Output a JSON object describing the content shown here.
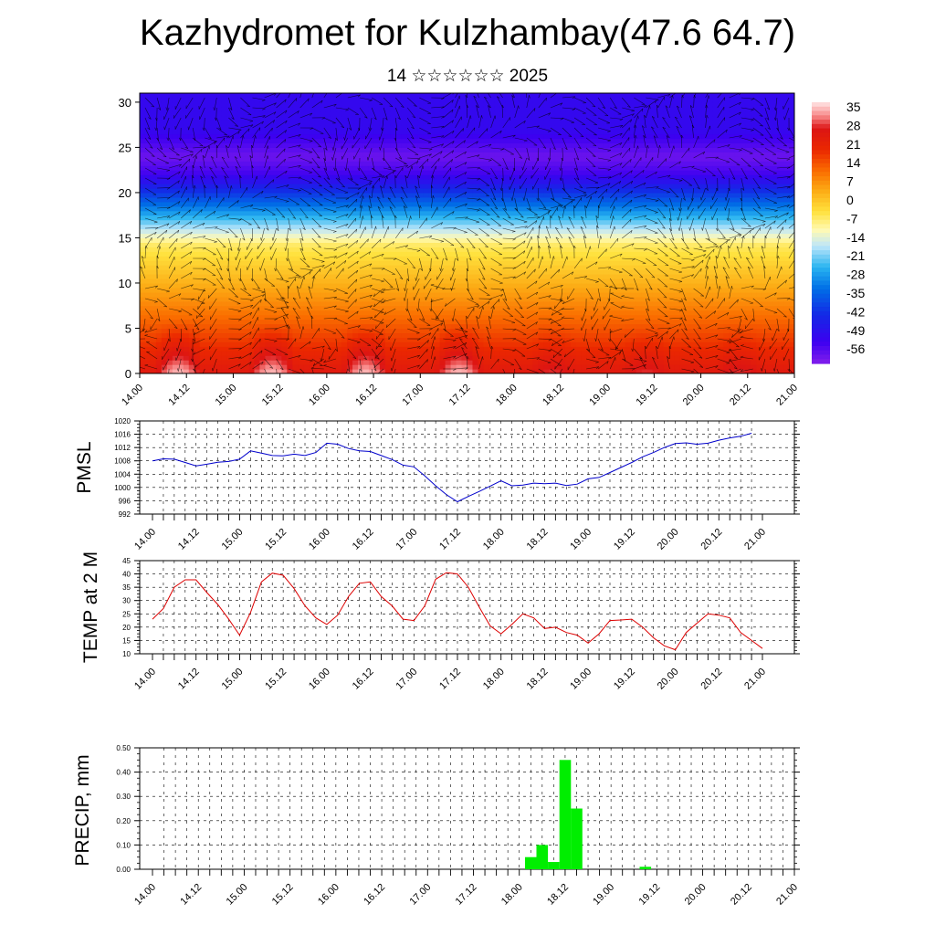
{
  "header": {
    "title": "Kazhydromet for Kulzhambay(47.6 64.7)",
    "subtitle": "14 ☆☆☆☆☆☆ 2025"
  },
  "chart_data": [
    {
      "type": "heatmap",
      "title": "",
      "y_range": [
        0,
        30
      ],
      "y_ticks": [
        0,
        5,
        10,
        15,
        20,
        25,
        30
      ],
      "x_ticks": [
        "14.00",
        "14.12",
        "15.00",
        "15.12",
        "16.00",
        "16.12",
        "17.00",
        "17.12",
        "18.00",
        "18.12",
        "19.00",
        "19.12",
        "20.00",
        "20.12",
        "21.00"
      ],
      "colorbar_labels": [
        "35",
        "28",
        "21",
        "14",
        "7",
        "0",
        "-7",
        "-14",
        "-21",
        "-28",
        "-35",
        "-42",
        "-49",
        "-56"
      ],
      "overlay": "wind vectors"
    },
    {
      "type": "line",
      "ylabel": "PMSL",
      "ylim": [
        992,
        1020
      ],
      "y_ticks": [
        992,
        996,
        1000,
        1004,
        1008,
        1012,
        1016,
        1020
      ],
      "x_ticks": [
        "14.00",
        "14.12",
        "15.00",
        "15.12",
        "16.00",
        "16.12",
        "17.00",
        "17.12",
        "18.00",
        "18.12",
        "19.00",
        "19.12",
        "20.00",
        "20.12",
        "21.00"
      ],
      "series": [
        {
          "color": "#0000cc",
          "values": [
            1008,
            1008.6,
            1008.5,
            1007.5,
            1006.5,
            1007,
            1007.6,
            1007.8,
            1008.5,
            1011,
            1010.3,
            1009.6,
            1009.5,
            1010,
            1009.6,
            1010.5,
            1013.3,
            1013,
            1011.7,
            1011,
            1010.8,
            1009.6,
            1008.4,
            1006.7,
            1006.2,
            1003.5,
            1000.5,
            997.8,
            995.7,
            997.3,
            998.8,
            1000.4,
            1002,
            1000.5,
            1000.7,
            1001.3,
            1001.1,
            1001.3,
            1000.6,
            1001,
            1002.6,
            1003,
            1004.5,
            1006,
            1007.5,
            1009.2,
            1010.5,
            1012,
            1013.2,
            1013.4,
            1013,
            1013.3,
            1014.2,
            1014.9,
            1015.4,
            1016.3
          ]
        }
      ]
    },
    {
      "type": "line",
      "ylabel": "TEMP at 2 M",
      "ylim": [
        10,
        45
      ],
      "y_ticks": [
        10,
        15,
        20,
        25,
        30,
        35,
        40,
        45
      ],
      "x_ticks": [
        "14.00",
        "14.12",
        "15.00",
        "15.12",
        "16.00",
        "16.12",
        "17.00",
        "17.12",
        "18.00",
        "18.12",
        "19.00",
        "19.12",
        "20.00",
        "20.12",
        "21.00"
      ],
      "series": [
        {
          "color": "#dd0000",
          "values": [
            23,
            27,
            35,
            37.8,
            37.8,
            33,
            28.5,
            23,
            17,
            25.5,
            37,
            40.3,
            39.5,
            34.5,
            28,
            23.5,
            21,
            24.5,
            31.5,
            36.5,
            37,
            31.5,
            28,
            23,
            22.5,
            28,
            38,
            40.5,
            40,
            35,
            27.5,
            20.5,
            17.5,
            21,
            25,
            23.5,
            19.5,
            20,
            18,
            17,
            14,
            17.5,
            22.5,
            22.7,
            23,
            20,
            16,
            13,
            11.5,
            18,
            21.5,
            25,
            24.5,
            23.5,
            18,
            15,
            12
          ]
        }
      ]
    },
    {
      "type": "bar",
      "ylabel": "PRECIP, mm",
      "ylim": [
        0,
        0.5
      ],
      "y_tick_labels": [
        "0.00",
        "0.10",
        "0.20",
        "0.30",
        "0.40",
        "0.50"
      ],
      "x_ticks": [
        "14.00",
        "14.12",
        "15.00",
        "15.12",
        "16.00",
        "16.12",
        "17.00",
        "17.12",
        "18.00",
        "18.12",
        "19.00",
        "19.12",
        "20.00",
        "20.12",
        "21.00"
      ],
      "bar_color": "#00ee00",
      "bars": [
        {
          "t": 18.125,
          "value": 0.05
        },
        {
          "t": 18.25,
          "value": 0.1
        },
        {
          "t": 18.375,
          "value": 0.03
        },
        {
          "t": 18.5,
          "value": 0.45
        },
        {
          "t": 18.625,
          "value": 0.25
        },
        {
          "t": 19.375,
          "value": 0.01
        }
      ]
    }
  ]
}
